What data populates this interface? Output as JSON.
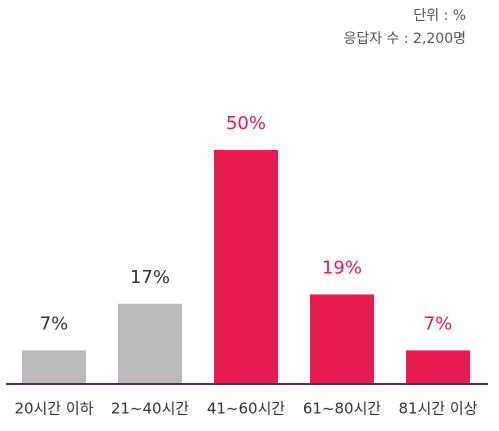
{
  "chart_data": {
    "type": "bar",
    "notes": [
      "단위 : %",
      "응답자 수 : 2,200명"
    ],
    "categories": [
      "20시간 이하",
      "21~40시간",
      "41~60시간",
      "61~80시간",
      "81시간 이상"
    ],
    "values": [
      7,
      17,
      50,
      19,
      7
    ],
    "value_labels": [
      "7%",
      "17%",
      "50%",
      "19%",
      "7%"
    ],
    "colors": [
      "#bcbabd",
      "#bcbabd",
      "#e81c4f",
      "#e81c4f",
      "#e81c4f"
    ],
    "label_colors": [
      "#333333",
      "#333333",
      "#e81c4f",
      "#e81c4f",
      "#e81c4f"
    ],
    "ylim": [
      0,
      50
    ]
  }
}
